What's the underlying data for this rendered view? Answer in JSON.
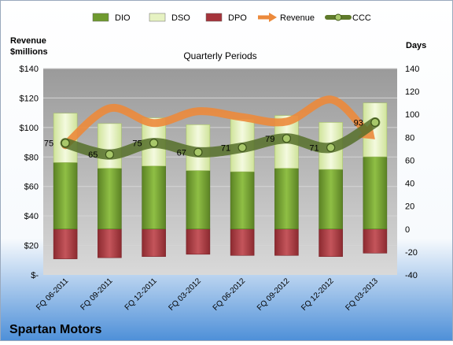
{
  "chart_data": {
    "type": "bar",
    "title": "Quarterly Periods",
    "company": "Spartan Motors",
    "categories": [
      "FQ 06-2011",
      "FQ 09-2011",
      "FQ 12-2011",
      "FQ 03-2012",
      "FQ 06-2012",
      "FQ 09-2012",
      "FQ 12-2012",
      "FQ 03-2013"
    ],
    "left_axis": {
      "label_line1": "Revenue",
      "label_line2": "$millions",
      "range": [
        0,
        140
      ],
      "ticks": [
        "$-",
        "$20",
        "$40",
        "$60",
        "$80",
        "$100",
        "$120",
        "$140"
      ]
    },
    "right_axis": {
      "label": "Days",
      "range": [
        -40,
        140
      ],
      "ticks": [
        "-40",
        "-20",
        "0",
        "20",
        "40",
        "60",
        "80",
        "100",
        "120",
        "140"
      ]
    },
    "legend": {
      "placement": "top",
      "items": [
        {
          "name": "DIO",
          "kind": "bar",
          "color": "#6f9a2f"
        },
        {
          "name": "DSO",
          "kind": "bar",
          "color": "#e6f2c2"
        },
        {
          "name": "DPO",
          "kind": "bar",
          "color": "#a5343b"
        },
        {
          "name": "Revenue",
          "kind": "arrow",
          "color": "#ec8a3b"
        },
        {
          "name": "CCC",
          "kind": "line",
          "color": "#5f7a2b"
        }
      ]
    },
    "series": [
      {
        "name": "DIO",
        "axis": "days",
        "values": [
          58,
          53,
          55,
          51,
          50,
          53,
          52,
          63
        ]
      },
      {
        "name": "DSO",
        "axis": "days",
        "values": [
          43,
          39,
          42,
          40,
          46,
          46,
          41,
          47
        ]
      },
      {
        "name": "DPO",
        "axis": "days",
        "values": [
          -26,
          -25,
          -24,
          -22,
          -23,
          -23,
          -24,
          -21
        ]
      },
      {
        "name": "Revenue",
        "axis": "revenue",
        "values": [
          88,
          113,
          103,
          111,
          107,
          104,
          119,
          92
        ]
      },
      {
        "name": "CCC",
        "axis": "days",
        "values": [
          75,
          65,
          75,
          67,
          71,
          79,
          71,
          93
        ]
      }
    ],
    "ccc_labels": [
      "75",
      "65",
      "75",
      "67",
      "71",
      "79",
      "71",
      "93"
    ]
  }
}
